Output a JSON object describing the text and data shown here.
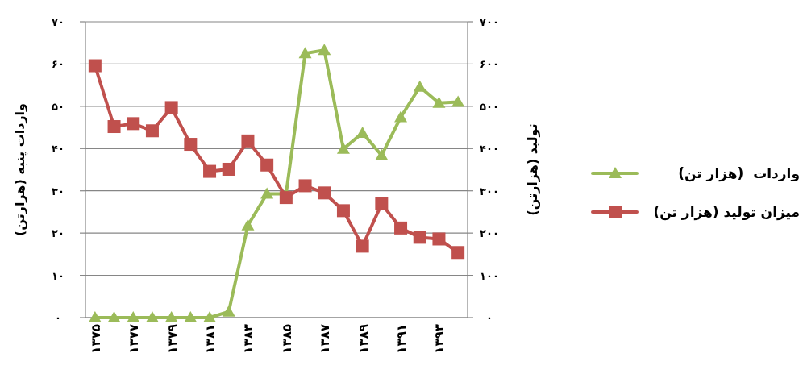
{
  "chart_data": {
    "type": "line",
    "ylabel": "واردات پنبه (هزارتن)",
    "y2label": "تولید (هزارتن)",
    "categories": [
      "۱۳۷۵",
      null,
      "۱۳۷۷",
      null,
      "۱۳۷۹",
      null,
      "۱۳۸۱",
      null,
      "۱۳۸۳",
      null,
      "۱۳۸۵",
      null,
      "۱۳۸۷",
      null,
      "۱۳۸۹",
      null,
      "۱۳۹۱",
      null,
      "۱۳۹۳",
      null
    ],
    "ylim": [
      0,
      70
    ],
    "yticks": [
      {
        "value": 0,
        "label": "۰"
      },
      {
        "value": 10,
        "label": "۱۰"
      },
      {
        "value": 20,
        "label": "۲۰"
      },
      {
        "value": 30,
        "label": "۳۰"
      },
      {
        "value": 40,
        "label": "۴۰"
      },
      {
        "value": 50,
        "label": "۵۰"
      },
      {
        "value": 60,
        "label": "۶۰"
      },
      {
        "value": 70,
        "label": "۷۰"
      }
    ],
    "y2lim": [
      0,
      700
    ],
    "y2ticks": [
      {
        "value": 0,
        "label": "۰"
      },
      {
        "value": 100,
        "label": "۱۰۰"
      },
      {
        "value": 200,
        "label": "۲۰۰"
      },
      {
        "value": 300,
        "label": "۳۰۰"
      },
      {
        "value": 400,
        "label": "۴۰۰"
      },
      {
        "value": 500,
        "label": "۵۰۰"
      },
      {
        "value": 600,
        "label": "۶۰۰"
      },
      {
        "value": 700,
        "label": "۷۰۰"
      }
    ],
    "grid": "y",
    "legend": "right",
    "series": [
      {
        "name": "واردات  (هزار تن)",
        "color": "#9bbb59",
        "marker": "triangle",
        "values": [
          0,
          0,
          0,
          0,
          0,
          0,
          0,
          1.4,
          21.8,
          29.3,
          29.3,
          62.5,
          63.3,
          39.9,
          43.7,
          38.4,
          47.4,
          54.6,
          50.8,
          51.0
        ]
      },
      {
        "name": "میزان تولید (هزار تن)",
        "color": "#c0504d",
        "marker": "square",
        "axis": "y2",
        "values": [
          596,
          452,
          459,
          442,
          497,
          410,
          346,
          351,
          418,
          361,
          284,
          312,
          295,
          253,
          169,
          269,
          212,
          190,
          186,
          154
        ]
      }
    ]
  }
}
